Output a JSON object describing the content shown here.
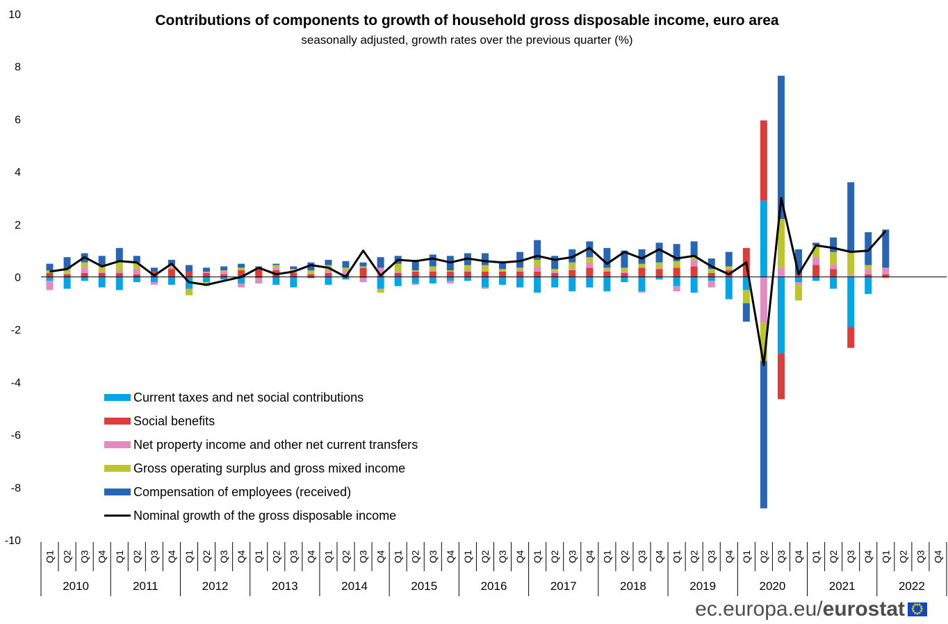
{
  "chart_data": {
    "type": "bar",
    "title": "Contributions of components to growth of household gross disposable income, euro area",
    "subtitle": "seasonally adjusted, growth rates over the previous quarter (%)",
    "ylim": [
      -10,
      10
    ],
    "yticks": [
      "10",
      "8",
      "6",
      "4",
      "2",
      "0",
      "-2",
      "-4",
      "-6",
      "-8",
      "-10"
    ],
    "quarters": [
      "Q1",
      "Q2",
      "Q3",
      "Q4"
    ],
    "years": [
      "2010",
      "2011",
      "2012",
      "2013",
      "2014",
      "2015",
      "2016",
      "2017",
      "2018",
      "2019",
      "2020",
      "2021",
      "2022"
    ],
    "series": [
      {
        "name": "Current taxes and net social contributions",
        "color": "#00a6e6",
        "values": [
          -0.15,
          -0.45,
          -0.15,
          -0.4,
          -0.5,
          -0.2,
          -0.2,
          -0.3,
          -0.45,
          -0.2,
          -0.1,
          -0.25,
          -0.05,
          -0.3,
          -0.4,
          -0.05,
          -0.3,
          -0.1,
          -0.05,
          -0.45,
          -0.35,
          -0.25,
          -0.25,
          -0.15,
          -0.15,
          -0.4,
          -0.3,
          -0.4,
          -0.6,
          -0.4,
          -0.55,
          -0.4,
          -0.55,
          -0.2,
          -0.55,
          -0.1,
          -0.35,
          -0.6,
          -0.15,
          -0.85,
          -0.5,
          2.9,
          -2.9,
          -0.2,
          -0.15,
          -0.45,
          -1.9,
          -0.65,
          0.0,
          null,
          null,
          null
        ]
      },
      {
        "name": "Social benefits",
        "color": "#dc3c3c",
        "values": [
          0.15,
          0.1,
          0.15,
          0.15,
          0.15,
          0.1,
          0.2,
          0.3,
          0.2,
          0.15,
          0.1,
          0.25,
          0.3,
          0.25,
          0.15,
          0.1,
          0.15,
          0.1,
          0.35,
          0.05,
          0.15,
          0.2,
          0.2,
          0.2,
          0.2,
          0.2,
          0.2,
          0.2,
          0.2,
          0.15,
          0.25,
          0.35,
          0.2,
          0.15,
          0.35,
          0.3,
          0.35,
          0.4,
          0.15,
          0.25,
          1.1,
          3.05,
          -1.75,
          0.1,
          0.45,
          0.3,
          -0.8,
          0.1,
          0.1,
          null,
          null,
          null
        ]
      },
      {
        "name": "Net property income and other net current transfers",
        "color": "#e38bc0",
        "values": [
          -0.35,
          0.05,
          0.2,
          0.05,
          0.1,
          0.2,
          -0.1,
          0.05,
          0.0,
          0.05,
          0.1,
          -0.15,
          -0.2,
          0.1,
          0.05,
          0.05,
          0.1,
          0.15,
          -0.15,
          0.3,
          0.05,
          -0.05,
          0.05,
          -0.1,
          0.05,
          -0.05,
          0.0,
          0.05,
          0.2,
          0.05,
          0.05,
          0.2,
          0.05,
          0.05,
          -0.05,
          0.05,
          -0.2,
          0.25,
          -0.25,
          0.05,
          0.0,
          -1.75,
          0.35,
          -0.1,
          0.3,
          0.15,
          0.1,
          0.2,
          0.25,
          null,
          null,
          null
        ]
      },
      {
        "name": "Gross operating surplus and gross mixed income",
        "color": "#bcc52e",
        "values": [
          0.1,
          0.15,
          0.2,
          0.25,
          0.35,
          0.25,
          0.0,
          0.1,
          -0.25,
          -0.15,
          0.05,
          0.1,
          0.05,
          0.1,
          0.1,
          0.1,
          0.2,
          0.1,
          0.05,
          -0.15,
          0.3,
          0.05,
          0.15,
          0.05,
          0.2,
          0.25,
          0.1,
          0.1,
          0.25,
          0.1,
          0.25,
          0.2,
          0.1,
          0.15,
          0.15,
          0.2,
          0.25,
          0.1,
          0.15,
          0.1,
          -0.5,
          -1.45,
          1.85,
          -0.6,
          0.45,
          0.5,
          0.85,
          0.15,
          -0.05,
          null,
          null,
          null
        ]
      },
      {
        "name": "Compensation of employees (received)",
        "color": "#2666b4",
        "values": [
          0.25,
          0.45,
          0.35,
          0.35,
          0.5,
          0.25,
          0.15,
          0.2,
          0.25,
          0.15,
          0.15,
          0.15,
          0.05,
          0.05,
          0.1,
          0.3,
          0.2,
          0.25,
          0.15,
          0.4,
          0.3,
          0.4,
          0.45,
          0.55,
          0.45,
          0.45,
          0.3,
          0.6,
          0.75,
          0.5,
          0.5,
          0.6,
          0.75,
          0.65,
          0.55,
          0.75,
          0.65,
          0.6,
          0.4,
          0.55,
          -0.7,
          -5.6,
          5.45,
          0.95,
          0.1,
          0.55,
          2.65,
          1.25,
          1.45,
          null,
          null,
          null
        ]
      }
    ],
    "line": {
      "name": "Nominal growth of the gross disposable income",
      "color": "#000000",
      "values": [
        0.2,
        0.3,
        0.75,
        0.4,
        0.6,
        0.55,
        0.05,
        0.5,
        -0.2,
        -0.3,
        -0.15,
        0.0,
        0.35,
        0.1,
        0.2,
        0.45,
        0.35,
        0.0,
        1.0,
        0.05,
        0.65,
        0.6,
        0.7,
        0.55,
        0.7,
        0.6,
        0.55,
        0.6,
        0.8,
        0.65,
        0.75,
        1.1,
        0.5,
        0.95,
        0.7,
        1.05,
        0.7,
        0.8,
        0.4,
        0.1,
        0.55,
        -3.35,
        3.0,
        0.1,
        1.2,
        1.1,
        0.95,
        1.0,
        1.75,
        null,
        null,
        null
      ]
    }
  },
  "footer": {
    "site": "ec.europa.eu/",
    "brand": "eurostat"
  }
}
